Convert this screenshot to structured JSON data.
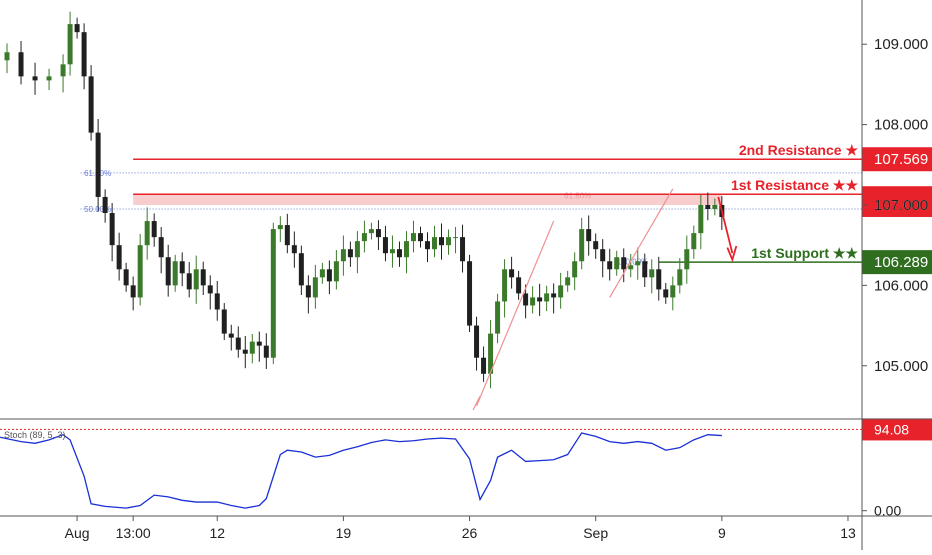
{
  "chart_data": {
    "type": "line",
    "title": "",
    "instrument_note": "",
    "price_panel": {
      "y_ticks": [
        {
          "value": 105.0,
          "label": "105.000"
        },
        {
          "value": 106.0,
          "label": "106.000"
        },
        {
          "value": 107.0,
          "label": "107.000"
        },
        {
          "value": 108.0,
          "label": "108.000"
        },
        {
          "value": 109.0,
          "label": "109.000"
        }
      ],
      "ylim": [
        104.35,
        109.55
      ],
      "close_series": [
        {
          "x": 0,
          "y": 108.8
        },
        {
          "x": 2,
          "y": 108.9
        },
        {
          "x": 6,
          "y": 108.6
        },
        {
          "x": 10,
          "y": 108.55
        },
        {
          "x": 14,
          "y": 108.6
        },
        {
          "x": 18,
          "y": 108.75
        },
        {
          "x": 20,
          "y": 109.25
        },
        {
          "x": 22,
          "y": 109.15
        },
        {
          "x": 24,
          "y": 108.6
        },
        {
          "x": 26,
          "y": 107.9
        },
        {
          "x": 28,
          "y": 107.1
        },
        {
          "x": 30,
          "y": 106.9
        },
        {
          "x": 32,
          "y": 106.5
        },
        {
          "x": 34,
          "y": 106.2
        },
        {
          "x": 36,
          "y": 106.0
        },
        {
          "x": 38,
          "y": 105.85
        },
        {
          "x": 40,
          "y": 106.5
        },
        {
          "x": 42,
          "y": 106.8
        },
        {
          "x": 44,
          "y": 106.6
        },
        {
          "x": 46,
          "y": 106.35
        },
        {
          "x": 48,
          "y": 106.0
        },
        {
          "x": 50,
          "y": 106.3
        },
        {
          "x": 52,
          "y": 106.15
        },
        {
          "x": 54,
          "y": 105.95
        },
        {
          "x": 56,
          "y": 106.2
        },
        {
          "x": 58,
          "y": 106.0
        },
        {
          "x": 60,
          "y": 105.9
        },
        {
          "x": 62,
          "y": 105.7
        },
        {
          "x": 64,
          "y": 105.4
        },
        {
          "x": 66,
          "y": 105.35
        },
        {
          "x": 68,
          "y": 105.2
        },
        {
          "x": 70,
          "y": 105.15
        },
        {
          "x": 72,
          "y": 105.3
        },
        {
          "x": 74,
          "y": 105.25
        },
        {
          "x": 76,
          "y": 105.1
        },
        {
          "x": 78,
          "y": 106.7
        },
        {
          "x": 80,
          "y": 106.75
        },
        {
          "x": 82,
          "y": 106.5
        },
        {
          "x": 84,
          "y": 106.4
        },
        {
          "x": 86,
          "y": 106.0
        },
        {
          "x": 88,
          "y": 105.85
        },
        {
          "x": 90,
          "y": 106.1
        },
        {
          "x": 92,
          "y": 106.2
        },
        {
          "x": 94,
          "y": 106.05
        },
        {
          "x": 96,
          "y": 106.3
        },
        {
          "x": 98,
          "y": 106.45
        },
        {
          "x": 100,
          "y": 106.35
        },
        {
          "x": 102,
          "y": 106.55
        },
        {
          "x": 104,
          "y": 106.65
        },
        {
          "x": 106,
          "y": 106.7
        },
        {
          "x": 108,
          "y": 106.6
        },
        {
          "x": 110,
          "y": 106.4
        },
        {
          "x": 112,
          "y": 106.45
        },
        {
          "x": 114,
          "y": 106.35
        },
        {
          "x": 116,
          "y": 106.55
        },
        {
          "x": 118,
          "y": 106.65
        },
        {
          "x": 120,
          "y": 106.55
        },
        {
          "x": 122,
          "y": 106.45
        },
        {
          "x": 124,
          "y": 106.6
        },
        {
          "x": 126,
          "y": 106.5
        },
        {
          "x": 128,
          "y": 106.6
        },
        {
          "x": 130,
          "y": 106.6
        },
        {
          "x": 132,
          "y": 106.3
        },
        {
          "x": 134,
          "y": 105.5
        },
        {
          "x": 136,
          "y": 105.1
        },
        {
          "x": 138,
          "y": 104.9
        },
        {
          "x": 140,
          "y": 105.4
        },
        {
          "x": 142,
          "y": 105.8
        },
        {
          "x": 144,
          "y": 106.2
        },
        {
          "x": 146,
          "y": 106.1
        },
        {
          "x": 148,
          "y": 105.9
        },
        {
          "x": 150,
          "y": 105.75
        },
        {
          "x": 152,
          "y": 105.85
        },
        {
          "x": 154,
          "y": 105.8
        },
        {
          "x": 156,
          "y": 105.9
        },
        {
          "x": 158,
          "y": 105.85
        },
        {
          "x": 160,
          "y": 106.0
        },
        {
          "x": 162,
          "y": 106.1
        },
        {
          "x": 164,
          "y": 106.3
        },
        {
          "x": 166,
          "y": 106.7
        },
        {
          "x": 168,
          "y": 106.55
        },
        {
          "x": 170,
          "y": 106.45
        },
        {
          "x": 172,
          "y": 106.3
        },
        {
          "x": 174,
          "y": 106.2
        },
        {
          "x": 176,
          "y": 106.35
        },
        {
          "x": 178,
          "y": 106.2
        },
        {
          "x": 180,
          "y": 106.25
        },
        {
          "x": 182,
          "y": 106.3
        },
        {
          "x": 184,
          "y": 106.1
        },
        {
          "x": 186,
          "y": 106.2
        },
        {
          "x": 188,
          "y": 105.95
        },
        {
          "x": 190,
          "y": 105.85
        },
        {
          "x": 192,
          "y": 106.0
        },
        {
          "x": 194,
          "y": 106.2
        },
        {
          "x": 196,
          "y": 106.45
        },
        {
          "x": 198,
          "y": 106.65
        },
        {
          "x": 200,
          "y": 107.0
        },
        {
          "x": 202,
          "y": 106.95
        },
        {
          "x": 204,
          "y": 107.0
        },
        {
          "x": 206,
          "y": 106.85
        }
      ],
      "horizontal_levels": [
        {
          "name": "2nd Resistance ★",
          "value": 107.569,
          "label": "107.569",
          "color": "#e8222a"
        },
        {
          "name": "1st Resistance ★★",
          "value": 107.134,
          "label": "107.134",
          "color": "#e8222a"
        },
        {
          "name": "1st Support ★★",
          "value": 106.289,
          "label": "106.289",
          "color": "#2e6e1e"
        }
      ],
      "current_price": {
        "value": 107.0,
        "label": "107.000"
      },
      "fib_levels": [
        {
          "label": "61.80%",
          "value": 107.4
        },
        {
          "label": "50.00%",
          "value": 106.95
        },
        {
          "label": "61.80%",
          "value": 107.12
        },
        {
          "label": "100.00%",
          "value": 106.3
        }
      ]
    },
    "oscillator_panel": {
      "label": "Stoch (89, 5, 3)",
      "y_ticks": [
        {
          "value": 0,
          "label": "0.00"
        }
      ],
      "ylim": [
        -5,
        105
      ],
      "marker_level": {
        "value": 94.08,
        "label": "94.08"
      },
      "series": [
        {
          "x": 0,
          "y": 85
        },
        {
          "x": 6,
          "y": 80
        },
        {
          "x": 10,
          "y": 78
        },
        {
          "x": 14,
          "y": 82
        },
        {
          "x": 18,
          "y": 88
        },
        {
          "x": 20,
          "y": 82
        },
        {
          "x": 24,
          "y": 40
        },
        {
          "x": 26,
          "y": 8
        },
        {
          "x": 30,
          "y": 5
        },
        {
          "x": 36,
          "y": 3
        },
        {
          "x": 40,
          "y": 6
        },
        {
          "x": 44,
          "y": 18
        },
        {
          "x": 48,
          "y": 16
        },
        {
          "x": 52,
          "y": 12
        },
        {
          "x": 56,
          "y": 10
        },
        {
          "x": 62,
          "y": 10
        },
        {
          "x": 66,
          "y": 6
        },
        {
          "x": 70,
          "y": 3
        },
        {
          "x": 74,
          "y": 6
        },
        {
          "x": 76,
          "y": 14
        },
        {
          "x": 80,
          "y": 65
        },
        {
          "x": 82,
          "y": 70
        },
        {
          "x": 86,
          "y": 68
        },
        {
          "x": 90,
          "y": 62
        },
        {
          "x": 94,
          "y": 64
        },
        {
          "x": 98,
          "y": 70
        },
        {
          "x": 102,
          "y": 74
        },
        {
          "x": 106,
          "y": 79
        },
        {
          "x": 110,
          "y": 82
        },
        {
          "x": 114,
          "y": 80
        },
        {
          "x": 118,
          "y": 81
        },
        {
          "x": 122,
          "y": 83
        },
        {
          "x": 126,
          "y": 84
        },
        {
          "x": 130,
          "y": 83
        },
        {
          "x": 134,
          "y": 60
        },
        {
          "x": 137,
          "y": 13
        },
        {
          "x": 140,
          "y": 35
        },
        {
          "x": 142,
          "y": 62
        },
        {
          "x": 146,
          "y": 70
        },
        {
          "x": 150,
          "y": 57
        },
        {
          "x": 154,
          "y": 58
        },
        {
          "x": 158,
          "y": 59
        },
        {
          "x": 162,
          "y": 65
        },
        {
          "x": 166,
          "y": 90
        },
        {
          "x": 170,
          "y": 86
        },
        {
          "x": 174,
          "y": 80
        },
        {
          "x": 178,
          "y": 78
        },
        {
          "x": 182,
          "y": 80
        },
        {
          "x": 186,
          "y": 78
        },
        {
          "x": 190,
          "y": 70
        },
        {
          "x": 194,
          "y": 73
        },
        {
          "x": 198,
          "y": 82
        },
        {
          "x": 202,
          "y": 88
        },
        {
          "x": 206,
          "y": 87
        }
      ]
    },
    "x_ticks": [
      {
        "x": 22,
        "label": "Aug"
      },
      {
        "x": 38,
        "label": "13:00"
      },
      {
        "x": 62,
        "label": "12"
      },
      {
        "x": 98,
        "label": "19"
      },
      {
        "x": 134,
        "label": "26"
      },
      {
        "x": 170,
        "label": "Sep"
      },
      {
        "x": 206,
        "label": "9"
      },
      {
        "x": 242,
        "label": "13"
      }
    ],
    "xlim": [
      0,
      246
    ],
    "colors": {
      "up": "#3b7a2a",
      "down": "#202020",
      "resistance": "#e8222a",
      "support": "#2e6e1e",
      "stoch": "#1a2fd6",
      "fib": "#6a7fd6",
      "zone": "#f5b8b8"
    }
  }
}
